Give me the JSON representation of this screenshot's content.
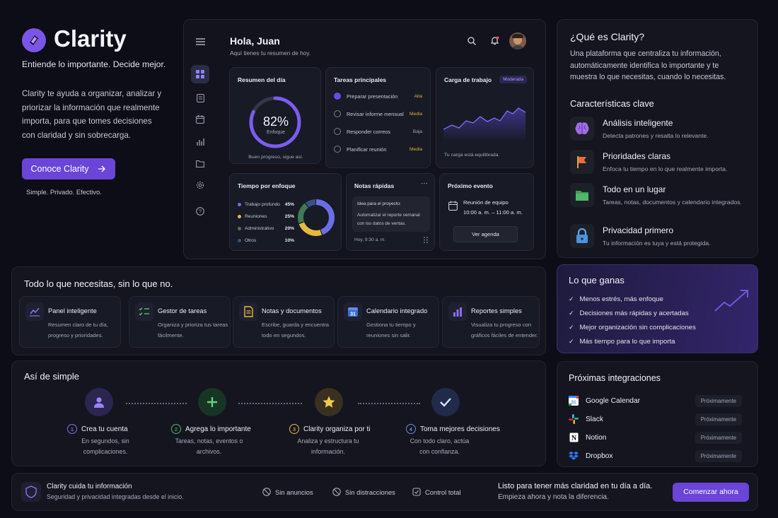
{
  "brand": {
    "name": "Clarity",
    "tagline": "Entiende lo importante. Decide mejor.",
    "description": "Clarity te ayuda a organizar, analizar y priorizar la información que realmente importa, para que tomes decisiones con claridad y sin sobrecarga.",
    "cta_label": "Conoce Clarity",
    "cta_note": "Simple. Privado. Efectivo."
  },
  "colors": {
    "accent": "#6a45d8",
    "bg": "#0c0d16",
    "card": "#14151f",
    "alta": "#e0b53d",
    "media": "#e0b53d",
    "baja": "#a4a6b4"
  },
  "dashboard": {
    "greeting": "Hola, Juan",
    "subtitle": "Aquí tienes tu resumen de hoy.",
    "summary": {
      "title": "Resumen del día",
      "percent": 82,
      "percent_label": "82%",
      "focus_label": "Enfoque",
      "note": "Buen progreso, sigue así."
    },
    "tasks": {
      "title": "Tareas principales",
      "items": [
        {
          "label": "Preparar presentación",
          "priority": "Alta",
          "done": true
        },
        {
          "label": "Revisar informe mensual",
          "priority": "Media",
          "done": false
        },
        {
          "label": "Responder correos",
          "priority": "Baja",
          "done": false
        },
        {
          "label": "Planificar reunión",
          "priority": "Media",
          "done": false
        }
      ]
    },
    "workload": {
      "title": "Carga de trabajo",
      "badge": "Moderada",
      "note": "Tu carga está equilibrada."
    },
    "focus_time": {
      "title": "Tiempo por enfoque",
      "items": [
        {
          "label": "Trabajo profundo",
          "percent": 45,
          "pct_label": "45%",
          "color": "#6b6fe6"
        },
        {
          "label": "Reuniones",
          "percent": 25,
          "pct_label": "25%",
          "color": "#e6b93e"
        },
        {
          "label": "Administrativo",
          "percent": 20,
          "pct_label": "20%",
          "color": "#3f7a55"
        },
        {
          "label": "Otros",
          "percent": 10,
          "pct_label": "10%",
          "color": "#3c4e86"
        }
      ]
    },
    "notes": {
      "title": "Notas rápidas",
      "menu": "···",
      "heading": "Idea para el proyecto:",
      "body": "Automatizar el reporte semanal con los datos de ventas.",
      "time": "Hoy, 9:30 a. m."
    },
    "event": {
      "title": "Próximo evento",
      "name": "Reunión de equipo",
      "time": "10:00 a. m. – 11:00 a. m.",
      "button": "Ver agenda"
    }
  },
  "what_is": {
    "title": "¿Qué es Clarity?",
    "body": "Una plataforma que centraliza tu información, automáticamente identifica lo importante y te muestra lo que necesitas, cuando lo necesitas.",
    "features_title": "Características clave",
    "features": [
      {
        "title": "Análisis inteligente",
        "desc": "Detecta patrones y resalta lo relevante.",
        "icon": "brain-icon"
      },
      {
        "title": "Prioridades claras",
        "desc": "Enfoca tu tiempo en lo que realmente importa.",
        "icon": "flag-icon"
      },
      {
        "title": "Todo en un lugar",
        "desc": "Tareas, notas, documentos y calendario integrados.",
        "icon": "folder-icon"
      },
      {
        "title": "Privacidad primero",
        "desc": "Tu información es tuya y está protegida.",
        "icon": "lock-icon"
      }
    ]
  },
  "everything": {
    "title": "Todo lo que necesitas, sin lo que no.",
    "cards": [
      {
        "title": "Panel inteligente",
        "desc": "Resumen claro de tu día, progreso y prioridades.",
        "icon": "chart-icon"
      },
      {
        "title": "Gestor de tareas",
        "desc": "Organiza y prioriza tus tareas fácilmente.",
        "icon": "checklist-icon"
      },
      {
        "title": "Notas y documentos",
        "desc": "Escribe, guarda y encuentra todo en segundos.",
        "icon": "document-icon"
      },
      {
        "title": "Calendario integrado",
        "desc": "Gestiona tu tiempo y reuniones sin salir.",
        "icon": "calendar-icon"
      },
      {
        "title": "Reportes simples",
        "desc": "Visualiza tu progreso con gráficos fáciles de entender.",
        "icon": "bar-chart-icon"
      }
    ]
  },
  "gains": {
    "title": "Lo que ganas",
    "items": [
      "Menos estrés, más enfoque",
      "Decisiones más rápidas y acertadas",
      "Mejor organización sin complicaciones",
      "Más tiempo para lo que importa"
    ]
  },
  "steps": {
    "title": "Así de simple",
    "items": [
      {
        "num": "1",
        "title": "Crea tu cuenta",
        "desc": "En segundos, sin complicaciones."
      },
      {
        "num": "2",
        "title": "Agrega lo importante",
        "desc": "Tareas, notas, eventos o archivos."
      },
      {
        "num": "3",
        "title": "Clarity organiza por ti",
        "desc": "Analiza y estructura tu información."
      },
      {
        "num": "4",
        "title": "Toma mejores decisiones",
        "desc": "Con todo claro, actúa con confianza."
      }
    ]
  },
  "integrations": {
    "title": "Próximas integraciones",
    "items": [
      {
        "name": "Google Calendar",
        "status": "Próximamente"
      },
      {
        "name": "Slack",
        "status": "Próximamente"
      },
      {
        "name": "Notion",
        "status": "Próximamente"
      },
      {
        "name": "Dropbox",
        "status": "Próximamente"
      }
    ]
  },
  "footer": {
    "privacy_title": "Clarity cuida tu información",
    "privacy_desc": "Seguridad y privacidad integradas desde el inicio.",
    "chips": [
      "Sin anuncios",
      "Sin distracciones",
      "Control total"
    ],
    "cta_title": "Listo para tener más claridad en tu día a día.",
    "cta_desc": "Empieza ahora y nota la diferencia.",
    "cta_button": "Comenzar ahora"
  }
}
